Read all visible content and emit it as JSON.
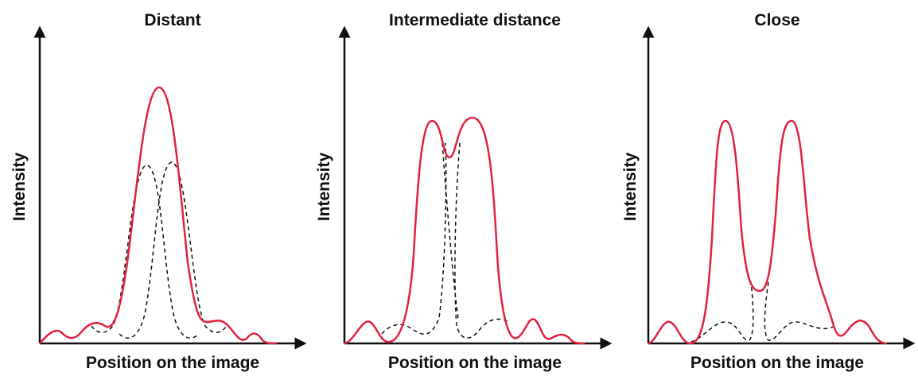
{
  "panels": [
    {
      "title": "Distant",
      "x_label": "Position on the image",
      "y_label": "Intensity"
    },
    {
      "title": "Intermediate distance",
      "x_label": "Position on the image",
      "y_label": "Intensity"
    },
    {
      "title": "Close",
      "x_label": "Position on the image",
      "y_label": "Intensity"
    }
  ]
}
